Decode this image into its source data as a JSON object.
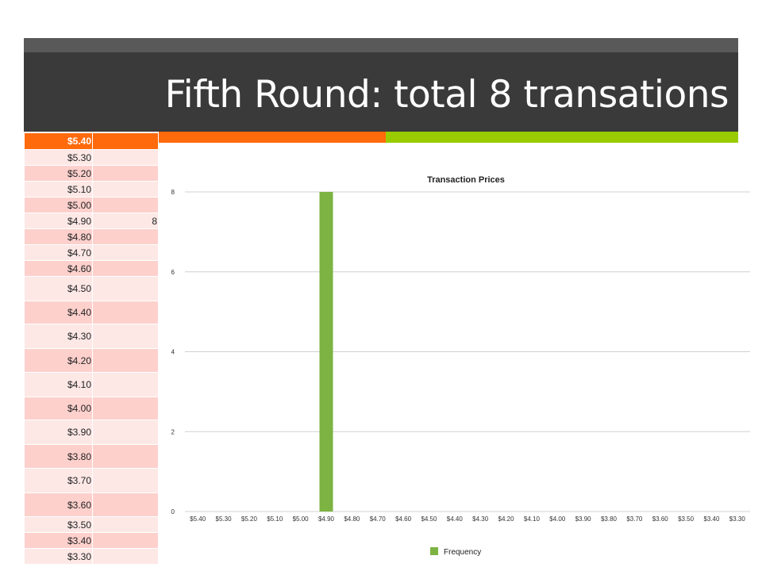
{
  "slide": {
    "title": "Fifth Round: total 8 transations"
  },
  "table": {
    "rows": [
      {
        "price": "$5.40",
        "count": ""
      },
      {
        "price": "$5.30",
        "count": ""
      },
      {
        "price": "$5.20",
        "count": ""
      },
      {
        "price": "$5.10",
        "count": ""
      },
      {
        "price": "$5.00",
        "count": ""
      },
      {
        "price": "$4.90",
        "count": "8"
      },
      {
        "price": "$4.80",
        "count": ""
      },
      {
        "price": "$4.70",
        "count": ""
      },
      {
        "price": "$4.60",
        "count": ""
      },
      {
        "price": "$4.50",
        "count": ""
      },
      {
        "price": "$4.40",
        "count": ""
      },
      {
        "price": "$4.30",
        "count": ""
      },
      {
        "price": "$4.20",
        "count": ""
      },
      {
        "price": "$4.10",
        "count": ""
      },
      {
        "price": "$4.00",
        "count": ""
      },
      {
        "price": "$3.90",
        "count": ""
      },
      {
        "price": "$3.80",
        "count": ""
      },
      {
        "price": "$3.70",
        "count": ""
      },
      {
        "price": "$3.60",
        "count": ""
      },
      {
        "price": "$3.50",
        "count": ""
      },
      {
        "price": "$3.40",
        "count": ""
      },
      {
        "price": "$3.30",
        "count": ""
      }
    ]
  },
  "colors": {
    "bar": "#7cb342",
    "header_orange": "#ff6a0d",
    "accent_green": "#99cc00",
    "title_bar": "#3a3a3a"
  },
  "chart_data": {
    "type": "bar",
    "title": "Transaction Prices",
    "categories": [
      "$5.40",
      "$5.30",
      "$5.20",
      "$5.10",
      "$5.00",
      "$4.90",
      "$4.80",
      "$4.70",
      "$4.60",
      "$4.50",
      "$4.40",
      "$4.30",
      "$4.20",
      "$4.10",
      "$4.00",
      "$3.90",
      "$3.80",
      "$3.70",
      "$3.60",
      "$3.50",
      "$3.40",
      "$3.30"
    ],
    "series": [
      {
        "name": "Frequency",
        "values": [
          0,
          0,
          0,
          0,
          0,
          8,
          0,
          0,
          0,
          0,
          0,
          0,
          0,
          0,
          0,
          0,
          0,
          0,
          0,
          0,
          0,
          0
        ]
      }
    ],
    "yticks": [
      0,
      2,
      4,
      6,
      8
    ],
    "ylim": [
      0,
      8
    ],
    "grid": true,
    "legend": "bottom"
  }
}
